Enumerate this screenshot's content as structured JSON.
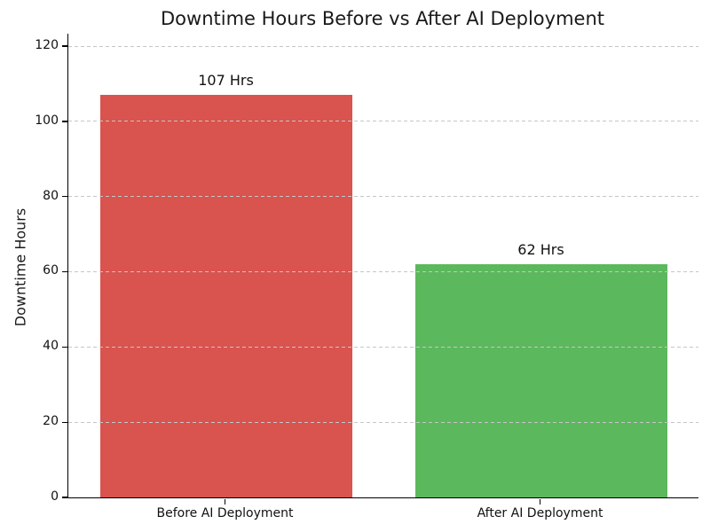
{
  "chart_data": {
    "type": "bar",
    "title": "Downtime Hours Before vs After AI Deployment",
    "xlabel": "",
    "ylabel": "Downtime Hours",
    "categories": [
      "Before AI Deployment",
      "After AI Deployment"
    ],
    "values": [
      107,
      62
    ],
    "bar_value_labels": [
      "107 Hrs",
      "62 Hrs"
    ],
    "bar_colors": [
      "#d9534f",
      "#5cb85c"
    ],
    "yticks": [
      0,
      20,
      40,
      60,
      80,
      100,
      120
    ],
    "ylim": [
      0,
      123.3
    ],
    "grid": "horizontal-dashed-over-bars",
    "grid_color": "#c6c6c6",
    "axis_color": "#000000",
    "background_color": "#ffffff",
    "legend": "none"
  }
}
